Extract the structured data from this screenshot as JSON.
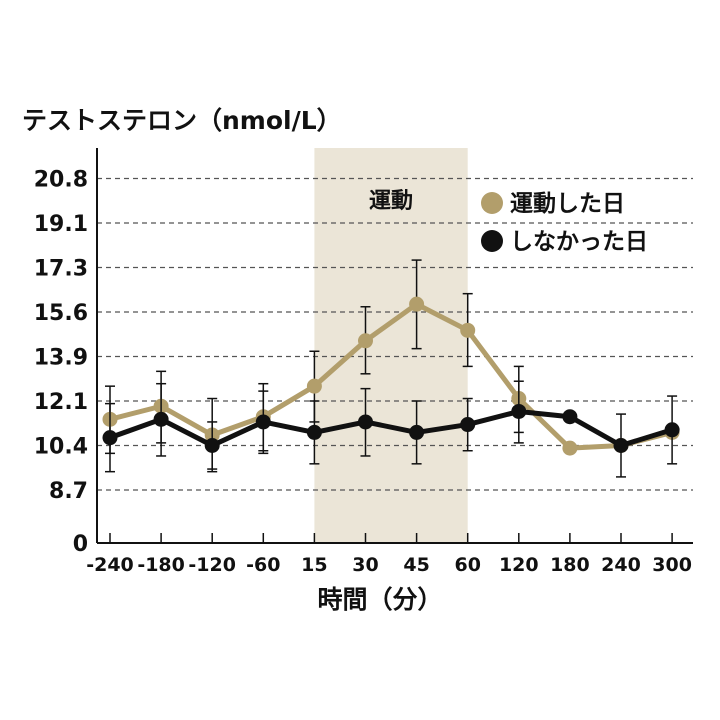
{
  "chart_data": {
    "type": "line",
    "ylabel": "テストステロン（nmol/L）",
    "xlabel": "時間（分）",
    "categories": [
      "-240",
      "-180",
      "-120",
      "-60",
      "15",
      "30",
      "45",
      "60",
      "120",
      "180",
      "240",
      "300"
    ],
    "yticks": [
      "0",
      "8.7",
      "10.4",
      "12.1",
      "13.9",
      "15.6",
      "17.3",
      "19.1",
      "20.8"
    ],
    "y_axis_note": "non-linear scale: 0 at baseline, 8.7 to 20.8 equally spaced",
    "highlight_band": {
      "label": "運動",
      "from": "15",
      "to": "60",
      "color": "#ebe5d7"
    },
    "grid": "dashed horizontal",
    "legend_position": "top-right",
    "series": [
      {
        "name": "運動した日",
        "color": "#b29e6b",
        "values": [
          11.4,
          11.9,
          10.8,
          11.5,
          12.7,
          14.5,
          15.9,
          14.9,
          12.2,
          10.3,
          10.4,
          10.9
        ],
        "error": [
          1.3,
          1.4,
          1.4,
          1.3,
          1.4,
          1.3,
          1.7,
          1.4,
          1.3,
          0.0,
          0.0,
          0.0
        ]
      },
      {
        "name": "しなかった日",
        "color": "#111111",
        "values": [
          10.7,
          11.4,
          10.4,
          11.3,
          10.9,
          11.3,
          10.9,
          11.2,
          11.7,
          11.5,
          10.4,
          11.0
        ],
        "error": [
          1.3,
          1.4,
          0.9,
          1.2,
          1.2,
          1.3,
          1.2,
          1.0,
          1.2,
          0.0,
          1.2,
          1.3
        ]
      }
    ]
  }
}
